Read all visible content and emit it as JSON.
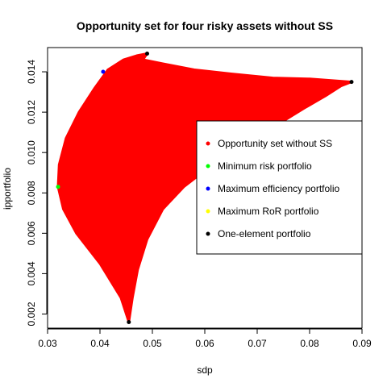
{
  "chart_data": {
    "type": "scatter",
    "title": "Opportunity set for four risky assets without SS",
    "xlabel": "sdp",
    "ylabel": "ipportfolio",
    "xlim": [
      0.03,
      0.09
    ],
    "ylim": [
      0.0013,
      0.0152
    ],
    "xticks": [
      0.03,
      0.04,
      0.05,
      0.06,
      0.07,
      0.08,
      0.09
    ],
    "xtick_labels": [
      "0.03",
      "0.04",
      "0.05",
      "0.06",
      "0.07",
      "0.08",
      "0.09"
    ],
    "yticks": [
      0.002,
      0.004,
      0.006,
      0.008,
      0.01,
      0.012,
      0.014
    ],
    "ytick_labels": [
      "0.002",
      "0.004",
      "0.006",
      "0.008",
      "0.010",
      "0.012",
      "0.014"
    ],
    "grid": false,
    "legend_position": "right",
    "opportunity_set": {
      "name": "Opportunity set without SS",
      "color": "#ff0000",
      "boundary": [
        [
          0.0455,
          0.0016
        ],
        [
          0.044,
          0.0028
        ],
        [
          0.04,
          0.0045
        ],
        [
          0.0355,
          0.006
        ],
        [
          0.033,
          0.0072
        ],
        [
          0.032,
          0.0083
        ],
        [
          0.0322,
          0.0094
        ],
        [
          0.0335,
          0.0107
        ],
        [
          0.036,
          0.012
        ],
        [
          0.039,
          0.0132
        ],
        [
          0.0415,
          0.0141
        ],
        [
          0.0445,
          0.0146
        ],
        [
          0.047,
          0.0148
        ],
        [
          0.049,
          0.0149
        ],
        [
          0.0482,
          0.0146
        ],
        [
          0.052,
          0.0144
        ],
        [
          0.058,
          0.0141
        ],
        [
          0.065,
          0.0139
        ],
        [
          0.073,
          0.0137
        ],
        [
          0.08,
          0.01365
        ],
        [
          0.088,
          0.0135
        ],
        [
          0.086,
          0.0133
        ],
        [
          0.083,
          0.0128
        ],
        [
          0.079,
          0.0122
        ],
        [
          0.074,
          0.0114
        ],
        [
          0.068,
          0.0104
        ],
        [
          0.06,
          0.0091
        ],
        [
          0.056,
          0.0083
        ],
        [
          0.052,
          0.0072
        ],
        [
          0.049,
          0.0057
        ],
        [
          0.0472,
          0.0042
        ],
        [
          0.0462,
          0.0028
        ],
        [
          0.0455,
          0.0016
        ]
      ]
    },
    "points": [
      {
        "name": "Minimum risk portfolio",
        "color": "#00ff00",
        "x": [
          0.032
        ],
        "y": [
          0.0083
        ]
      },
      {
        "name": "Maximum efficiency portfolio",
        "color": "#0000ff",
        "x": [
          0.0406
        ],
        "y": [
          0.014
        ]
      },
      {
        "name": "Maximum RoR portfolio",
        "color": "#ffff00",
        "x": [],
        "y": []
      },
      {
        "name": "One-element portfolio",
        "color": "#000000",
        "x": [
          0.049,
          0.088,
          0.0455
        ],
        "y": [
          0.0149,
          0.0135,
          0.0016
        ]
      }
    ],
    "legend": [
      {
        "label": "Opportunity set without SS",
        "color": "#ff0000"
      },
      {
        "label": "Minimum risk portfolio",
        "color": "#00ff00"
      },
      {
        "label": "Maximum efficiency portfolio",
        "color": "#0000ff"
      },
      {
        "label": "Maximum RoR portfolio",
        "color": "#ffff00"
      },
      {
        "label": "One-element portfolio",
        "color": "#000000"
      }
    ]
  }
}
